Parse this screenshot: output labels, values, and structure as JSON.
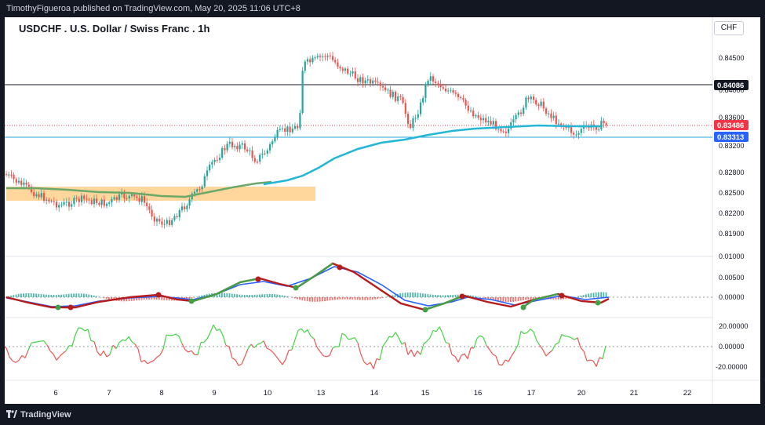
{
  "topbar": {
    "text": "TimothyFigueroa published on TradingView.com, May 20, 2025 11:06 UTC+8"
  },
  "chart": {
    "title": "USDCHF . U.S. Dollar / Swiss Franc . 1h",
    "currency_button": "CHF",
    "price_ticks": [
      "0.84500",
      "0.84000",
      "0.83600",
      "0.83200",
      "0.82800",
      "0.82500",
      "0.82200",
      "0.81900"
    ],
    "price_badges": [
      {
        "label": "0.84086",
        "color": "#131722"
      },
      {
        "label": "0.83486",
        "color": "#f23645"
      },
      {
        "label": "0.83313",
        "color": "#2962ff"
      }
    ],
    "macd_ticks": [
      "0.01000",
      "0.00500",
      "0.00000"
    ],
    "osc_ticks": [
      "20.00000",
      "0.00000",
      "-20.00000"
    ],
    "time_ticks": [
      "6",
      "7",
      "8",
      "9",
      "10",
      "13",
      "14",
      "15",
      "16",
      "17",
      "20",
      "21",
      "22"
    ]
  },
  "bottombar": {
    "brand": "TradingView"
  }
}
